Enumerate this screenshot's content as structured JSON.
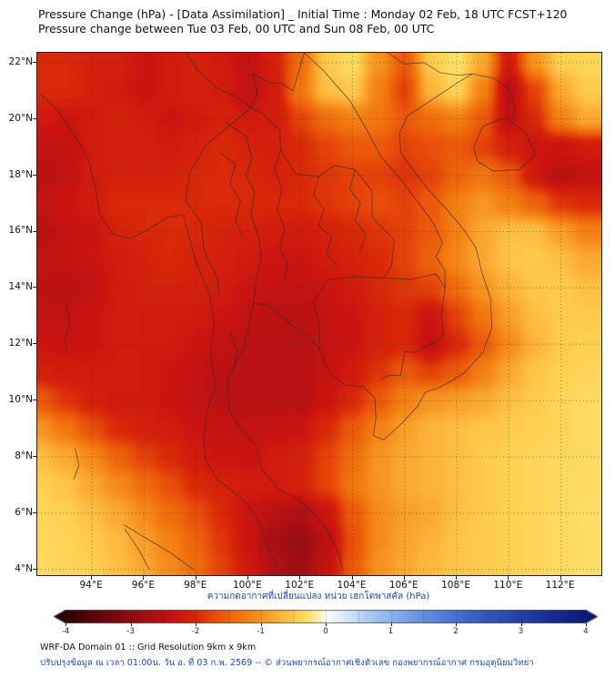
{
  "header": {
    "title_line1": "Pressure Change (hPa) - [Data Assimilation] _ Initial Time : Monday 02 Feb, 18 UTC FCST+120",
    "title_line2": "Pressure change between Tue 03 Feb, 00 UTC and Sun 08 Feb, 00 UTC"
  },
  "footer": {
    "line1": "WRF-DA Domain 01 :: Grid Resolution 9km x 9km",
    "line2_th": "ปรับปรุงข้อมูล ณ เวลา 01:00น. วัน อ. ที่ 03 ก.พ. 2569 -- © ส่วนพยากรณ์อากาศเชิงตัวเลข กองพยากรณ์อากาศ กรมอุตุนิยมวิทยา"
  },
  "chart_data": {
    "type": "heatmap",
    "title": "Pressure Change (hPa)",
    "units": "hPa",
    "lon_domain": [
      91.9,
      113.55
    ],
    "lat_domain": [
      3.8,
      22.35
    ],
    "x_axis": {
      "tick_values": [
        94,
        96,
        98,
        100,
        102,
        104,
        106,
        108,
        110,
        112
      ],
      "tick_labels": [
        "94°E",
        "96°E",
        "98°E",
        "100°E",
        "102°E",
        "104°E",
        "106°E",
        "108°E",
        "110°E",
        "112°E"
      ]
    },
    "y_axis": {
      "tick_values": [
        4,
        6,
        8,
        10,
        12,
        14,
        16,
        18,
        20,
        22
      ],
      "tick_labels": [
        "4°N",
        "6°N",
        "8°N",
        "10°N",
        "12°N",
        "14°N",
        "16°N",
        "18°N",
        "20°N",
        "22°N"
      ]
    },
    "grid": {
      "lon_start": 92,
      "lon_step": 1,
      "lat_start": 22,
      "lat_step": -1,
      "values": [
        [
          -2.0,
          -2.0,
          -2.1,
          -2.1,
          -2.3,
          -2.2,
          -2.1,
          -2.2,
          -2.4,
          -2.1,
          -1.4,
          -0.5,
          -0.35,
          -1.0,
          -1.6,
          -0.5,
          -0.3,
          -0.8,
          -2.2,
          -1.0,
          -0.45,
          -0.4
        ],
        [
          -2.0,
          -2.0,
          -2.1,
          -2.2,
          -2.3,
          -2.2,
          -2.1,
          -2.2,
          -2.4,
          -2.2,
          -1.3,
          -0.6,
          -0.5,
          -1.2,
          -1.8,
          -0.7,
          -0.4,
          -1.2,
          -2.5,
          -1.8,
          -0.8,
          -0.5
        ],
        [
          -2.2,
          -2.3,
          -2.2,
          -2.1,
          -2.2,
          -2.3,
          -2.2,
          -2.1,
          -2.2,
          -2.2,
          -1.8,
          -1.4,
          -1.2,
          -1.3,
          -1.6,
          -1.4,
          -1.2,
          -1.6,
          -2.4,
          -2.0,
          -1.2,
          -0.8
        ],
        [
          -2.4,
          -2.4,
          -2.2,
          -2.1,
          -2.1,
          -2.2,
          -2.1,
          -2.0,
          -2.1,
          -2.1,
          -2.0,
          -1.8,
          -1.6,
          -1.6,
          -1.8,
          -1.7,
          -1.6,
          -1.8,
          -2.1,
          -2.3,
          -2.3,
          -2.2
        ],
        [
          -2.5,
          -2.4,
          -2.2,
          -2.1,
          -2.1,
          -2.1,
          -2.0,
          -2.0,
          -2.0,
          -2.1,
          -2.0,
          -1.9,
          -1.8,
          -1.8,
          -1.9,
          -1.8,
          -1.5,
          -1.3,
          -1.6,
          -2.2,
          -2.5,
          -2.4
        ],
        [
          -2.4,
          -2.3,
          -2.2,
          -2.0,
          -2.0,
          -2.0,
          -2.0,
          -2.0,
          -2.0,
          -2.0,
          -2.0,
          -1.9,
          -1.8,
          -1.7,
          -1.8,
          -1.6,
          -1.2,
          -1.0,
          -1.2,
          -1.5,
          -1.9,
          -2.0
        ],
        [
          -2.5,
          -2.4,
          -2.3,
          -2.1,
          -2.0,
          -2.0,
          -2.0,
          -2.1,
          -2.1,
          -2.2,
          -2.2,
          -2.1,
          -2.0,
          -1.9,
          -1.8,
          -1.6,
          -1.2,
          -0.8,
          -0.6,
          -0.6,
          -0.9,
          -1.2
        ],
        [
          -2.4,
          -2.4,
          -2.3,
          -2.2,
          -2.1,
          -2.0,
          -2.1,
          -2.1,
          -2.2,
          -2.3,
          -2.3,
          -2.2,
          -2.1,
          -2.0,
          -1.8,
          -1.5,
          -1.1,
          -0.8,
          -0.55,
          -0.5,
          -0.6,
          -0.8
        ],
        [
          -2.5,
          -2.5,
          -2.4,
          -2.2,
          -2.1,
          -2.1,
          -2.1,
          -2.2,
          -2.3,
          -2.4,
          -2.4,
          -2.3,
          -2.2,
          -2.0,
          -1.9,
          -1.8,
          -1.4,
          -1.0,
          -0.7,
          -0.55,
          -0.5,
          -0.6
        ],
        [
          -2.4,
          -2.4,
          -2.3,
          -2.2,
          -2.2,
          -2.2,
          -2.2,
          -2.3,
          -2.4,
          -2.5,
          -2.5,
          -2.4,
          -2.3,
          -2.1,
          -2.0,
          -2.3,
          -1.8,
          -1.3,
          -0.9,
          -0.6,
          -0.5,
          -0.5
        ],
        [
          -2.3,
          -2.3,
          -2.3,
          -2.2,
          -2.2,
          -2.2,
          -2.3,
          -2.4,
          -2.5,
          -2.5,
          -2.5,
          -2.4,
          -2.3,
          -2.1,
          -2.0,
          -2.4,
          -2.0,
          -1.6,
          -1.1,
          -0.7,
          -0.5,
          -0.45
        ],
        [
          -2.1,
          -2.2,
          -2.2,
          -2.2,
          -2.2,
          -2.3,
          -2.4,
          -2.5,
          -2.5,
          -2.5,
          -2.5,
          -2.4,
          -2.2,
          -1.9,
          -1.6,
          -1.8,
          -1.6,
          -1.2,
          -0.8,
          -0.55,
          -0.45,
          -0.4
        ],
        [
          -1.6,
          -1.9,
          -2.1,
          -2.2,
          -2.2,
          -2.3,
          -2.4,
          -2.5,
          -2.5,
          -2.5,
          -2.5,
          -2.3,
          -2.0,
          -1.6,
          -1.2,
          -1.0,
          -0.9,
          -0.8,
          -0.6,
          -0.5,
          -0.4,
          -0.35
        ],
        [
          -1.0,
          -1.3,
          -1.7,
          -2.0,
          -2.1,
          -2.2,
          -2.3,
          -2.4,
          -2.4,
          -2.4,
          -2.3,
          -2.0,
          -1.6,
          -1.2,
          -0.9,
          -0.7,
          -0.6,
          -0.55,
          -0.5,
          -0.45,
          -0.4,
          -0.35
        ],
        [
          -0.6,
          -0.8,
          -1.1,
          -1.5,
          -1.8,
          -2.0,
          -2.2,
          -2.3,
          -2.3,
          -2.2,
          -2.1,
          -1.8,
          -1.4,
          -1.0,
          -0.8,
          -0.7,
          -0.6,
          -0.5,
          -0.45,
          -0.4,
          -0.38,
          -0.35
        ],
        [
          -0.45,
          -0.55,
          -0.8,
          -1.1,
          -1.4,
          -1.7,
          -2.0,
          -2.1,
          -2.2,
          -2.2,
          -2.1,
          -1.8,
          -1.3,
          -1.0,
          -0.8,
          -0.7,
          -0.6,
          -0.5,
          -0.45,
          -0.4,
          -0.36,
          -0.33
        ],
        [
          -0.4,
          -0.45,
          -0.6,
          -0.8,
          -1.1,
          -1.4,
          -1.7,
          -2.0,
          -2.3,
          -2.5,
          -2.6,
          -2.3,
          -1.6,
          -1.1,
          -0.9,
          -0.8,
          -0.6,
          -0.5,
          -0.45,
          -0.4,
          -0.35,
          -0.3
        ],
        [
          -0.38,
          -0.42,
          -0.5,
          -0.65,
          -0.9,
          -1.2,
          -1.5,
          -1.9,
          -2.3,
          -2.7,
          -2.9,
          -2.5,
          -1.7,
          -1.1,
          -0.85,
          -0.7,
          -0.55,
          -0.5,
          -0.45,
          -0.4,
          -0.35,
          -0.3
        ],
        [
          -0.35,
          -0.4,
          -0.45,
          -0.6,
          -0.8,
          -1.1,
          -1.4,
          -1.8,
          -2.2,
          -2.6,
          -2.8,
          -2.4,
          -1.6,
          -1.0,
          -0.8,
          -0.65,
          -0.55,
          -0.5,
          -0.45,
          -0.4,
          -0.35,
          -0.3
        ]
      ]
    },
    "gridlines": {
      "lon_every": 2,
      "lat_every": 2,
      "style": "dotted"
    },
    "colorbar": {
      "label_th": "ความกดอากาศที่เปลี่ยนแปลง หน่วย เฮกโตพาสคัล (hPa)",
      "range": [
        -4,
        4
      ],
      "tick_values": [
        -4,
        -3,
        -2,
        -1,
        0,
        1,
        2,
        3,
        4
      ],
      "tick_labels": [
        "-4",
        "-3",
        "-2",
        "-1",
        "0",
        "1",
        "2",
        "3",
        "4"
      ],
      "stops": [
        [
          -4.0,
          "#2e0005"
        ],
        [
          -3.2,
          "#7f0a10"
        ],
        [
          -2.7,
          "#a80f14"
        ],
        [
          -2.3,
          "#cc1410"
        ],
        [
          -2.0,
          "#d92808"
        ],
        [
          -1.7,
          "#e94f0a"
        ],
        [
          -1.3,
          "#f1770e"
        ],
        [
          -1.0,
          "#f79420"
        ],
        [
          -0.7,
          "#fcb33a"
        ],
        [
          -0.45,
          "#ffd050"
        ],
        [
          -0.25,
          "#ffe372"
        ],
        [
          -0.1,
          "#fff2b8"
        ],
        [
          0.0,
          "#ffffff"
        ],
        [
          0.3,
          "#d8e8fb"
        ],
        [
          0.8,
          "#9cc0f0"
        ],
        [
          1.5,
          "#6490e2"
        ],
        [
          2.2,
          "#3b63cc"
        ],
        [
          3.0,
          "#2340ad"
        ],
        [
          3.6,
          "#15288f"
        ],
        [
          4.0,
          "#0c1a78"
        ]
      ]
    }
  }
}
